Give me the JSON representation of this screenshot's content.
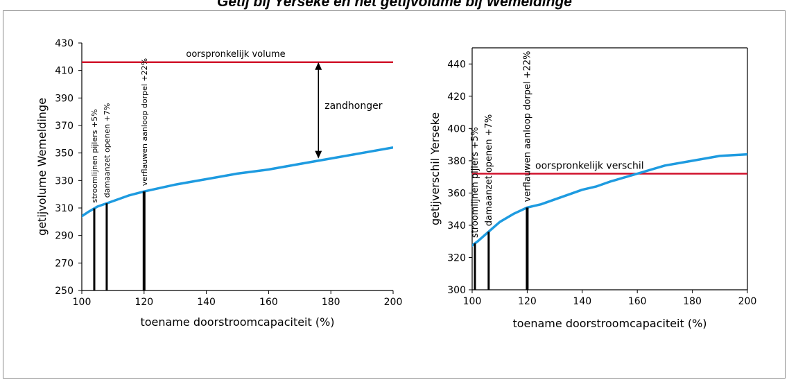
{
  "title": "Getij bij Yerseke en het getijvolume bij Wemeldinge",
  "colors": {
    "curve": "#1e9be0",
    "reference": "#d0112b",
    "markers": "#000000"
  },
  "chart_data": [
    {
      "type": "line",
      "xlabel": "toename doorstroomcapaciteit (%)",
      "ylabel": "getijvolume Wemeldinge",
      "xlim": [
        100,
        200
      ],
      "ylim": [
        250,
        430
      ],
      "xticks": [
        "100",
        "120",
        "140",
        "160",
        "180",
        "200"
      ],
      "yticks": [
        "250",
        "270",
        "290",
        "310",
        "330",
        "350",
        "370",
        "390",
        "410",
        "430"
      ],
      "series": [
        {
          "x": [
            98,
            102,
            105,
            110,
            115,
            120,
            130,
            140,
            150,
            160,
            170,
            180,
            190,
            200
          ],
          "y": [
            301,
            307,
            311,
            315,
            319,
            322,
            327,
            331,
            335,
            338,
            342,
            346,
            350,
            354
          ]
        }
      ],
      "reference_line": {
        "y": 416,
        "label": "oorspronkelijk volume"
      },
      "markers": [
        {
          "x": 104,
          "label": "stroomlijnen pijlers +5%"
        },
        {
          "x": 108,
          "label": "damaanzet openen +7%"
        },
        {
          "x": 120,
          "label": "verflauwen aanloop dorpel +22%"
        }
      ],
      "annotation": {
        "text": "zandhonger",
        "x": 176,
        "from": 346,
        "to": 416
      }
    },
    {
      "type": "line",
      "xlabel": "toename doorstroomcapaciteit (%)",
      "ylabel": "getijverschil Yerseke",
      "xlim": [
        100,
        200
      ],
      "ylim": [
        300,
        450
      ],
      "xticks": [
        "100",
        "120",
        "140",
        "160",
        "180",
        "200"
      ],
      "yticks": [
        "300",
        "320",
        "340",
        "360",
        "380",
        "400",
        "420",
        "440"
      ],
      "series": [
        {
          "x": [
            98,
            102,
            106,
            110,
            115,
            120,
            125,
            130,
            135,
            140,
            145,
            150,
            160,
            170,
            180,
            190,
            200
          ],
          "y": [
            325,
            330,
            336,
            342,
            347,
            351,
            353,
            356,
            359,
            362,
            364,
            367,
            372,
            377,
            380,
            383,
            384
          ]
        }
      ],
      "reference_line": {
        "y": 372,
        "label": "oorspronkelijk verschil"
      },
      "markers": [
        {
          "x": 101,
          "label": "stroomlijnen pijlers +5%"
        },
        {
          "x": 106,
          "label": "damaanzet openen +7%"
        },
        {
          "x": 120,
          "label": "verflauwen aanloop dorpel +22%"
        }
      ]
    }
  ]
}
